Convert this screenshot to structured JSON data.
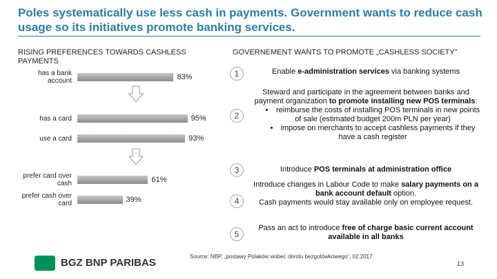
{
  "title": "Poles systematically use less cash in payments. Government wants to reduce cash usage so its initiatives promote banking services.",
  "chart_data": {
    "type": "hbar",
    "title": "RISING PREFERENCES TOWARDS CASHLESS PAYMENTS",
    "categories": [
      "has a bank account",
      "has a card",
      "use a card",
      "prefer card over cash",
      "prefer cash over card"
    ],
    "values": [
      83,
      95,
      93,
      61,
      39
    ],
    "value_labels": [
      "83%",
      "95%",
      "93%",
      "61%",
      "39%"
    ],
    "xlim": [
      0,
      100
    ],
    "color": "#a8a8a8"
  },
  "right_panel": {
    "title": "GOVERNEMENT WANTS TO PROMOTE „CASHLESS SOCIETY”",
    "items": [
      {
        "number": "1",
        "paragraphs": [
          {
            "parts": [
              {
                "text": "Enable "
              },
              {
                "text": "e-administration services",
                "bold": true
              },
              {
                "text": " via banking  systems"
              }
            ]
          }
        ]
      },
      {
        "number": "2",
        "paragraphs": [
          {
            "parts": [
              {
                "text": "Steward and participate in the agreement between banks and payment organization "
              },
              {
                "text": "to promote installing new POS terminals",
                "bold": true
              },
              {
                "text": ":"
              }
            ]
          },
          {
            "bullet": true,
            "parts": [
              {
                "text": "reimburse the costs of installing POS terminals in new points of sale (estimated budget 200m PLN per year)"
              }
            ]
          },
          {
            "bullet": true,
            "parts": [
              {
                "text": "impose on merchants to accept cashless payments if they have a cash register"
              }
            ]
          }
        ]
      },
      {
        "number": "3",
        "paragraphs": [
          {
            "parts": [
              {
                "text": "Introduce "
              },
              {
                "text": "POS terminals at administration office",
                "bold": true
              }
            ]
          }
        ]
      },
      {
        "number": "4",
        "paragraphs": [
          {
            "parts": [
              {
                "text": "Introduce changes in Labour Code to make "
              },
              {
                "text": "salary payments on a bank account default",
                "bold": true
              },
              {
                "text": " option."
              }
            ]
          },
          {
            "parts": [
              {
                "text": "Cash payments would stay available only on employee request."
              }
            ]
          }
        ]
      },
      {
        "number": "5",
        "paragraphs": [
          {
            "parts": [
              {
                "text": "Pass an act to introduce "
              },
              {
                "text": "free of charge basic current account available in all banks",
                "bold": true
              }
            ]
          }
        ]
      }
    ]
  },
  "source": "Source: NBP, „postawy Polaków wobec obrotu bezgotówkowego”, 02.2017",
  "logo": "BGZ BNP PARIBAS",
  "page_number": "13"
}
